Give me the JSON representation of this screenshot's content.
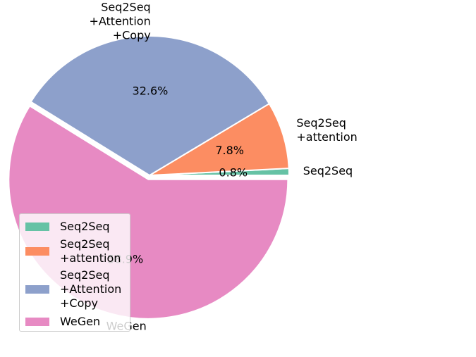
{
  "chart_data": {
    "type": "pie",
    "title": "",
    "slices": [
      {
        "label": "Seq2Seq",
        "value": 0.8,
        "pct_label": "0.8%",
        "color": "#66c2a5",
        "outer_label": "Seq2Seq"
      },
      {
        "label": "Seq2Seq +attention",
        "value": 7.8,
        "pct_label": "7.8%",
        "color": "#fc8d62",
        "outer_label": "Seq2Seq\n+attention"
      },
      {
        "label": "Seq2Seq +Attention +Copy",
        "value": 32.6,
        "pct_label": "32.6%",
        "color": "#8da0cb",
        "outer_label": "Seq2Seq\n+Attention\n+Copy"
      },
      {
        "label": "WeGen",
        "value": 58.9,
        "pct_label": "58.9%",
        "color": "#e78ac3",
        "outer_label": "WeGen"
      }
    ],
    "exploded": [
      "WeGen"
    ],
    "legend": {
      "placement": "lower-left",
      "entries": [
        "Seq2Seq",
        "Seq2Seq\n+attention",
        "Seq2Seq\n+Attention\n+Copy",
        "WeGen"
      ]
    }
  }
}
